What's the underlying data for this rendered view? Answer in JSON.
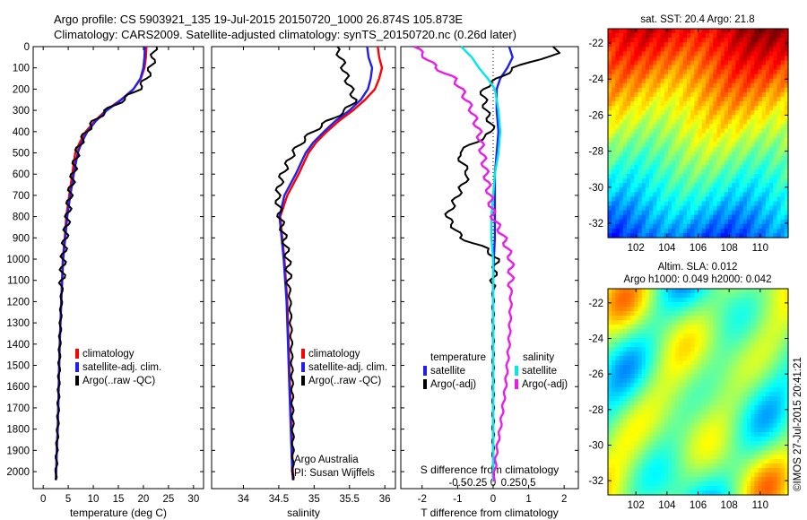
{
  "header": {
    "line1": "Argo profile: CS 5903921_135 19-Jul-2015 20150720_1000 26.874S 105.873E",
    "line2": "Climatology: CARS2009. Satellite-adjusted climatology: synTS_20150720.nc (0.26d later)"
  },
  "colors": {
    "red": "#ff0000",
    "blue": "#2020ee",
    "black": "#000000",
    "magenta": "#e81ee8",
    "cyan": "#00e8e8"
  },
  "chart_data": [
    {
      "type": "line",
      "xlabel": "temperature (deg C)",
      "xticks": [
        "0",
        "5",
        "10",
        "15",
        "20",
        "25",
        "30"
      ],
      "xlim": [
        -2,
        32
      ],
      "ylim": [
        2080,
        0
      ],
      "yticks": [
        "0",
        "100",
        "200",
        "300",
        "400",
        "500",
        "600",
        "700",
        "800",
        "900",
        "1000",
        "1100",
        "1200",
        "1300",
        "1400",
        "1500",
        "1600",
        "1700",
        "1800",
        "1900",
        "2000"
      ],
      "legend": [
        "climatology",
        "satellite-adj. clim.",
        "Argo(..raw -QC)"
      ],
      "series": [
        {
          "name": "climatology",
          "color": "red",
          "x": [
            20.6,
            20.5,
            20.2,
            19.5,
            18.0,
            15.5,
            12.5,
            10.3,
            8.5,
            7.3,
            6.4,
            5.8,
            5.2,
            4.6,
            4.3,
            3.9,
            3.6,
            3.3,
            3.1,
            2.9,
            2.7,
            2.6,
            2.5
          ],
          "y": [
            0,
            50,
            100,
            150,
            200,
            250,
            300,
            350,
            400,
            450,
            500,
            600,
            700,
            800,
            900,
            1000,
            1200,
            1400,
            1600,
            1800,
            1900,
            2000,
            2040
          ]
        },
        {
          "name": "satellite-adj. clim.",
          "color": "blue",
          "x": [
            20.3,
            20.2,
            20.0,
            19.4,
            18.0,
            15.6,
            12.7,
            10.5,
            8.8,
            7.7,
            6.9,
            6.1,
            5.4,
            4.8,
            4.4,
            4.0,
            3.6,
            3.3,
            3.1,
            2.9,
            2.7,
            2.6,
            2.5
          ],
          "y": [
            0,
            50,
            100,
            150,
            200,
            250,
            300,
            350,
            400,
            450,
            500,
            600,
            700,
            800,
            900,
            1000,
            1200,
            1400,
            1600,
            1800,
            1900,
            2000,
            2040
          ]
        },
        {
          "name": "Argo(..raw -QC)",
          "color": "black",
          "x": [
            22.2,
            22.0,
            21.5,
            20.6,
            19.0,
            16.0,
            12.6,
            10.2,
            8.6,
            7.5,
            6.7,
            6.0,
            5.3,
            4.9,
            4.4,
            4.0,
            3.6,
            3.3,
            3.1,
            2.9,
            2.7,
            2.6,
            2.5
          ],
          "y": [
            0,
            50,
            100,
            150,
            200,
            250,
            300,
            350,
            400,
            450,
            500,
            600,
            700,
            800,
            900,
            1000,
            1200,
            1400,
            1600,
            1800,
            1900,
            2000,
            2040
          ]
        }
      ]
    },
    {
      "type": "line",
      "xlabel": "salinity",
      "xticks": [
        "34",
        "34.5",
        "35",
        "35.5",
        "36"
      ],
      "xlim": [
        33.55,
        36.15
      ],
      "ylim": [
        2080,
        0
      ],
      "legend": [
        "climatology",
        "satellite-adj. clim.",
        "Argo(..raw -QC)"
      ],
      "annotation": [
        "Argo Australia",
        "PI: Susan Wijffels"
      ],
      "series": [
        {
          "name": "climatology",
          "color": "red",
          "x": [
            35.9,
            35.92,
            35.96,
            35.92,
            35.86,
            35.72,
            35.55,
            35.35,
            35.18,
            35.03,
            34.92,
            34.78,
            34.62,
            34.52,
            34.55,
            34.58,
            34.62,
            34.64,
            34.66,
            34.68,
            34.69,
            34.7,
            34.71
          ],
          "y": [
            0,
            50,
            100,
            150,
            200,
            250,
            300,
            350,
            400,
            450,
            500,
            600,
            700,
            800,
            900,
            1000,
            1200,
            1400,
            1600,
            1800,
            1900,
            2000,
            2040
          ]
        },
        {
          "name": "satellite-adj. clim.",
          "color": "blue",
          "x": [
            35.75,
            35.77,
            35.82,
            35.8,
            35.76,
            35.66,
            35.5,
            35.3,
            35.14,
            34.99,
            34.88,
            34.74,
            34.58,
            34.51,
            34.54,
            34.57,
            34.61,
            34.63,
            34.65,
            34.67,
            34.68,
            34.69,
            34.7
          ],
          "y": [
            0,
            50,
            100,
            150,
            200,
            250,
            300,
            350,
            400,
            450,
            500,
            600,
            700,
            800,
            900,
            1000,
            1200,
            1400,
            1600,
            1800,
            1900,
            2000,
            2040
          ]
        },
        {
          "name": "Argo(..raw -QC)",
          "color": "black",
          "x": [
            35.3,
            35.38,
            35.42,
            35.46,
            35.52,
            35.58,
            35.45,
            35.2,
            34.98,
            34.82,
            34.7,
            34.55,
            34.48,
            34.52,
            34.58,
            34.63,
            34.66,
            34.68,
            34.69,
            34.7,
            34.7,
            34.7,
            34.7
          ],
          "y": [
            0,
            50,
            100,
            150,
            200,
            250,
            300,
            350,
            400,
            450,
            500,
            600,
            700,
            800,
            900,
            1000,
            1200,
            1400,
            1600,
            1800,
            1900,
            2000,
            2040
          ]
        }
      ]
    },
    {
      "type": "line",
      "xlabel_bottom": "T difference from climatology",
      "xlabel_top": "S difference from climatology",
      "xticks_T": [
        "-2",
        "-1",
        "0",
        "1",
        "2"
      ],
      "xticks_S": [
        "-0.5",
        "-0.25",
        "0",
        "0.25",
        "0.5"
      ],
      "xlim": [
        -2.6,
        2.4
      ],
      "ylim": [
        2080,
        0
      ],
      "legend_headers": [
        "temperature",
        "salinity"
      ],
      "legend": [
        "satellite",
        "Argo(-adj)",
        "satellite",
        "Argo(-adj)"
      ],
      "series": [
        {
          "name": "satellite",
          "color": "blue",
          "x": [
            0.45,
            0.55,
            0.4,
            0.2,
            0.1,
            0.1,
            0.15,
            0.1,
            0.05,
            0.05,
            0.05,
            0.05,
            0.02,
            0.0,
            0.0,
            0.0,
            0.0,
            0.0,
            0.0,
            0.0,
            0.0,
            0.0
          ],
          "y": [
            0,
            50,
            100,
            150,
            200,
            300,
            400,
            500,
            600,
            700,
            800,
            900,
            1000,
            1100,
            1200,
            1400,
            1600,
            1800,
            1900,
            2000,
            2040,
            2040
          ]
        },
        {
          "name": "Argo(-adj)",
          "color": "black",
          "x": [
            1.6,
            1.8,
            1.3,
            0.6,
            -0.3,
            -0.2,
            0.0,
            -1.0,
            -0.7,
            -1.0,
            -1.3,
            -0.9,
            -0.2,
            0.1,
            0.0,
            0.0,
            0.0,
            0.0,
            0.0,
            0.0,
            0.0,
            0.0
          ],
          "y": [
            0,
            30,
            60,
            100,
            200,
            300,
            400,
            500,
            600,
            700,
            800,
            900,
            950,
            1000,
            1100,
            1200,
            1400,
            1600,
            1800,
            2000,
            2040,
            2040
          ]
        },
        {
          "name": "satellite",
          "color": "cyan",
          "x": [
            -0.9,
            -0.6,
            -0.4,
            -0.15,
            0.05,
            0.15,
            0.2,
            0.15,
            0.05,
            0.0,
            -0.05,
            -0.05,
            0.0,
            0.0,
            0.0,
            0.0,
            0.0,
            0.0,
            0.0,
            0.0,
            0.0,
            0.0
          ],
          "y": [
            0,
            50,
            100,
            150,
            200,
            300,
            400,
            500,
            600,
            700,
            800,
            900,
            1000,
            1100,
            1200,
            1400,
            1600,
            1800,
            1900,
            2000,
            2040,
            2040
          ]
        },
        {
          "name": "Argo(-adj)",
          "color": "magenta",
          "x": [
            -2.2,
            -1.9,
            -1.6,
            -1.1,
            -0.9,
            -0.6,
            -0.4,
            -0.3,
            -0.2,
            -0.1,
            0.0,
            0.3,
            0.5,
            0.5,
            0.5,
            0.45,
            0.35,
            0.2,
            0.1,
            0.05,
            0.02,
            0.0
          ],
          "y": [
            0,
            50,
            100,
            150,
            200,
            300,
            400,
            500,
            600,
            700,
            800,
            900,
            1000,
            1100,
            1200,
            1400,
            1600,
            1800,
            1900,
            2000,
            2040,
            2040
          ]
        }
      ]
    },
    {
      "type": "heatmap",
      "title": "sat. SST: 20.4 Argo: 21.8",
      "xticks": [
        "102",
        "104",
        "106",
        "108",
        "110"
      ],
      "yticks": [
        "-22",
        "-24",
        "-26",
        "-28",
        "-30",
        "-32"
      ],
      "xlim": [
        100.2,
        111.8
      ],
      "ylim": [
        -32.8,
        -21.2
      ]
    },
    {
      "type": "heatmap",
      "title_line1": "Altim. SLA: 0.012",
      "title_line2": "Argo h1000: 0.049 h2000: 0.042",
      "xticks": [
        "102",
        "104",
        "106",
        "108",
        "110"
      ],
      "yticks": [
        "-22",
        "-24",
        "-26",
        "-28",
        "-30",
        "-32"
      ],
      "xlim": [
        100.2,
        111.8
      ],
      "ylim": [
        -32.8,
        -21.2
      ]
    }
  ],
  "footer": {
    "credit": "©IMOS 27-Jul-2015 20:41:21"
  }
}
